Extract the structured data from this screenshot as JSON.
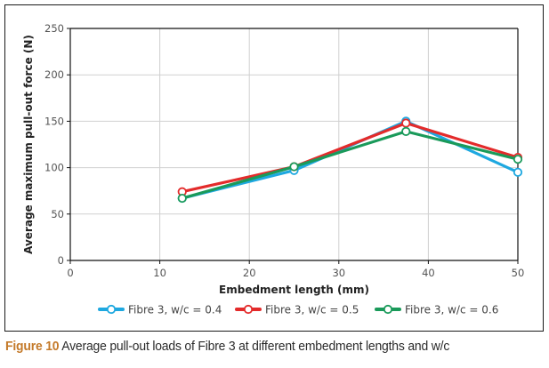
{
  "chart_data": {
    "type": "line",
    "title": "",
    "xlabel": "Embedment length (mm)",
    "ylabel": "Average maximum pull-out force (N)",
    "xlim": [
      0,
      50
    ],
    "ylim": [
      0,
      250
    ],
    "xticks": [
      0,
      10,
      20,
      30,
      40,
      50
    ],
    "yticks": [
      0,
      50,
      100,
      150,
      200,
      250
    ],
    "grid": true,
    "legend_position": "bottom",
    "x": [
      12.5,
      25,
      37.5,
      50
    ],
    "series": [
      {
        "name": "Fibre 3, w/c = 0.4",
        "color": "#1ea8e0",
        "values": [
          67,
          97,
          150,
          95
        ]
      },
      {
        "name": "Fibre 3, w/c = 0.5",
        "color": "#e32b2b",
        "values": [
          74,
          101,
          148,
          111
        ]
      },
      {
        "name": "Fibre 3, w/c = 0.6",
        "color": "#1a9a5a",
        "values": [
          67,
          101,
          139,
          109
        ]
      }
    ]
  },
  "caption": {
    "figure_label": "Figure 10",
    "text": "Average pull-out loads of Fibre 3 at different embedment lengths and w/c",
    "label_color": "#c47a2a"
  }
}
